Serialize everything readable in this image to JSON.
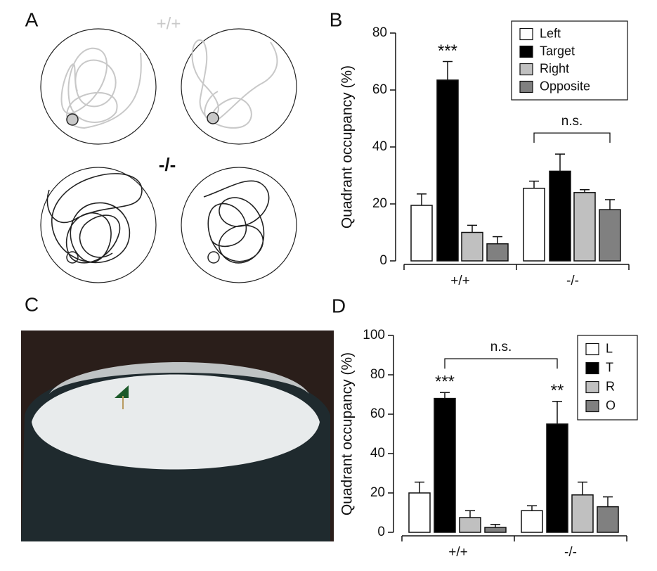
{
  "panels": {
    "A": {
      "label": "A",
      "groups": [
        "+/+",
        "-/-"
      ]
    },
    "C": {
      "label": "C"
    }
  },
  "chart_data": [
    {
      "type": "bar",
      "panel_label": "B",
      "y_label": "Quadrant occupancy (%)",
      "categories": [
        "+/+",
        "-/-"
      ],
      "series": [
        {
          "name": "Left",
          "color": "#ffffff",
          "values": [
            19.5,
            25.5
          ],
          "errors": [
            4,
            2.5
          ]
        },
        {
          "name": "Target",
          "color": "#000000",
          "values": [
            63.5,
            31.5
          ],
          "errors": [
            6.5,
            6
          ]
        },
        {
          "name": "Right",
          "color": "#c0c0c0",
          "values": [
            10,
            24
          ],
          "errors": [
            2.5,
            1
          ]
        },
        {
          "name": "Opposite",
          "color": "#808080",
          "values": [
            6,
            18
          ],
          "errors": [
            2.5,
            3.5
          ]
        }
      ],
      "ylim": [
        0,
        80
      ],
      "yticks": [
        0,
        20,
        40,
        60,
        80
      ],
      "legend": "top-right",
      "annotations": [
        {
          "text": "***",
          "series": "Target",
          "category": "+/+"
        },
        {
          "text": "n.s.",
          "category": "-/-"
        }
      ]
    },
    {
      "type": "bar",
      "panel_label": "D",
      "y_label": "Quadrant occupancy (%)",
      "categories": [
        "+/+",
        "-/-"
      ],
      "series": [
        {
          "name": "L",
          "color": "#ffffff",
          "values": [
            20,
            11
          ],
          "errors": [
            5.5,
            2.5
          ]
        },
        {
          "name": "T",
          "color": "#000000",
          "values": [
            68,
            55
          ],
          "errors": [
            3,
            11.5
          ]
        },
        {
          "name": "R",
          "color": "#c0c0c0",
          "values": [
            7.5,
            19
          ],
          "errors": [
            3.5,
            6.5
          ]
        },
        {
          "name": "O",
          "color": "#808080",
          "values": [
            2.5,
            13
          ],
          "errors": [
            1.5,
            5
          ]
        }
      ],
      "ylim": [
        0,
        100
      ],
      "yticks": [
        0,
        20,
        40,
        60,
        80,
        100
      ],
      "legend": "top-right",
      "annotations": [
        {
          "text": "***",
          "series": "T",
          "category": "+/+"
        },
        {
          "text": "**",
          "series": "T",
          "category": "-/-"
        },
        {
          "text": "n.s.",
          "series": "T"
        }
      ]
    }
  ]
}
